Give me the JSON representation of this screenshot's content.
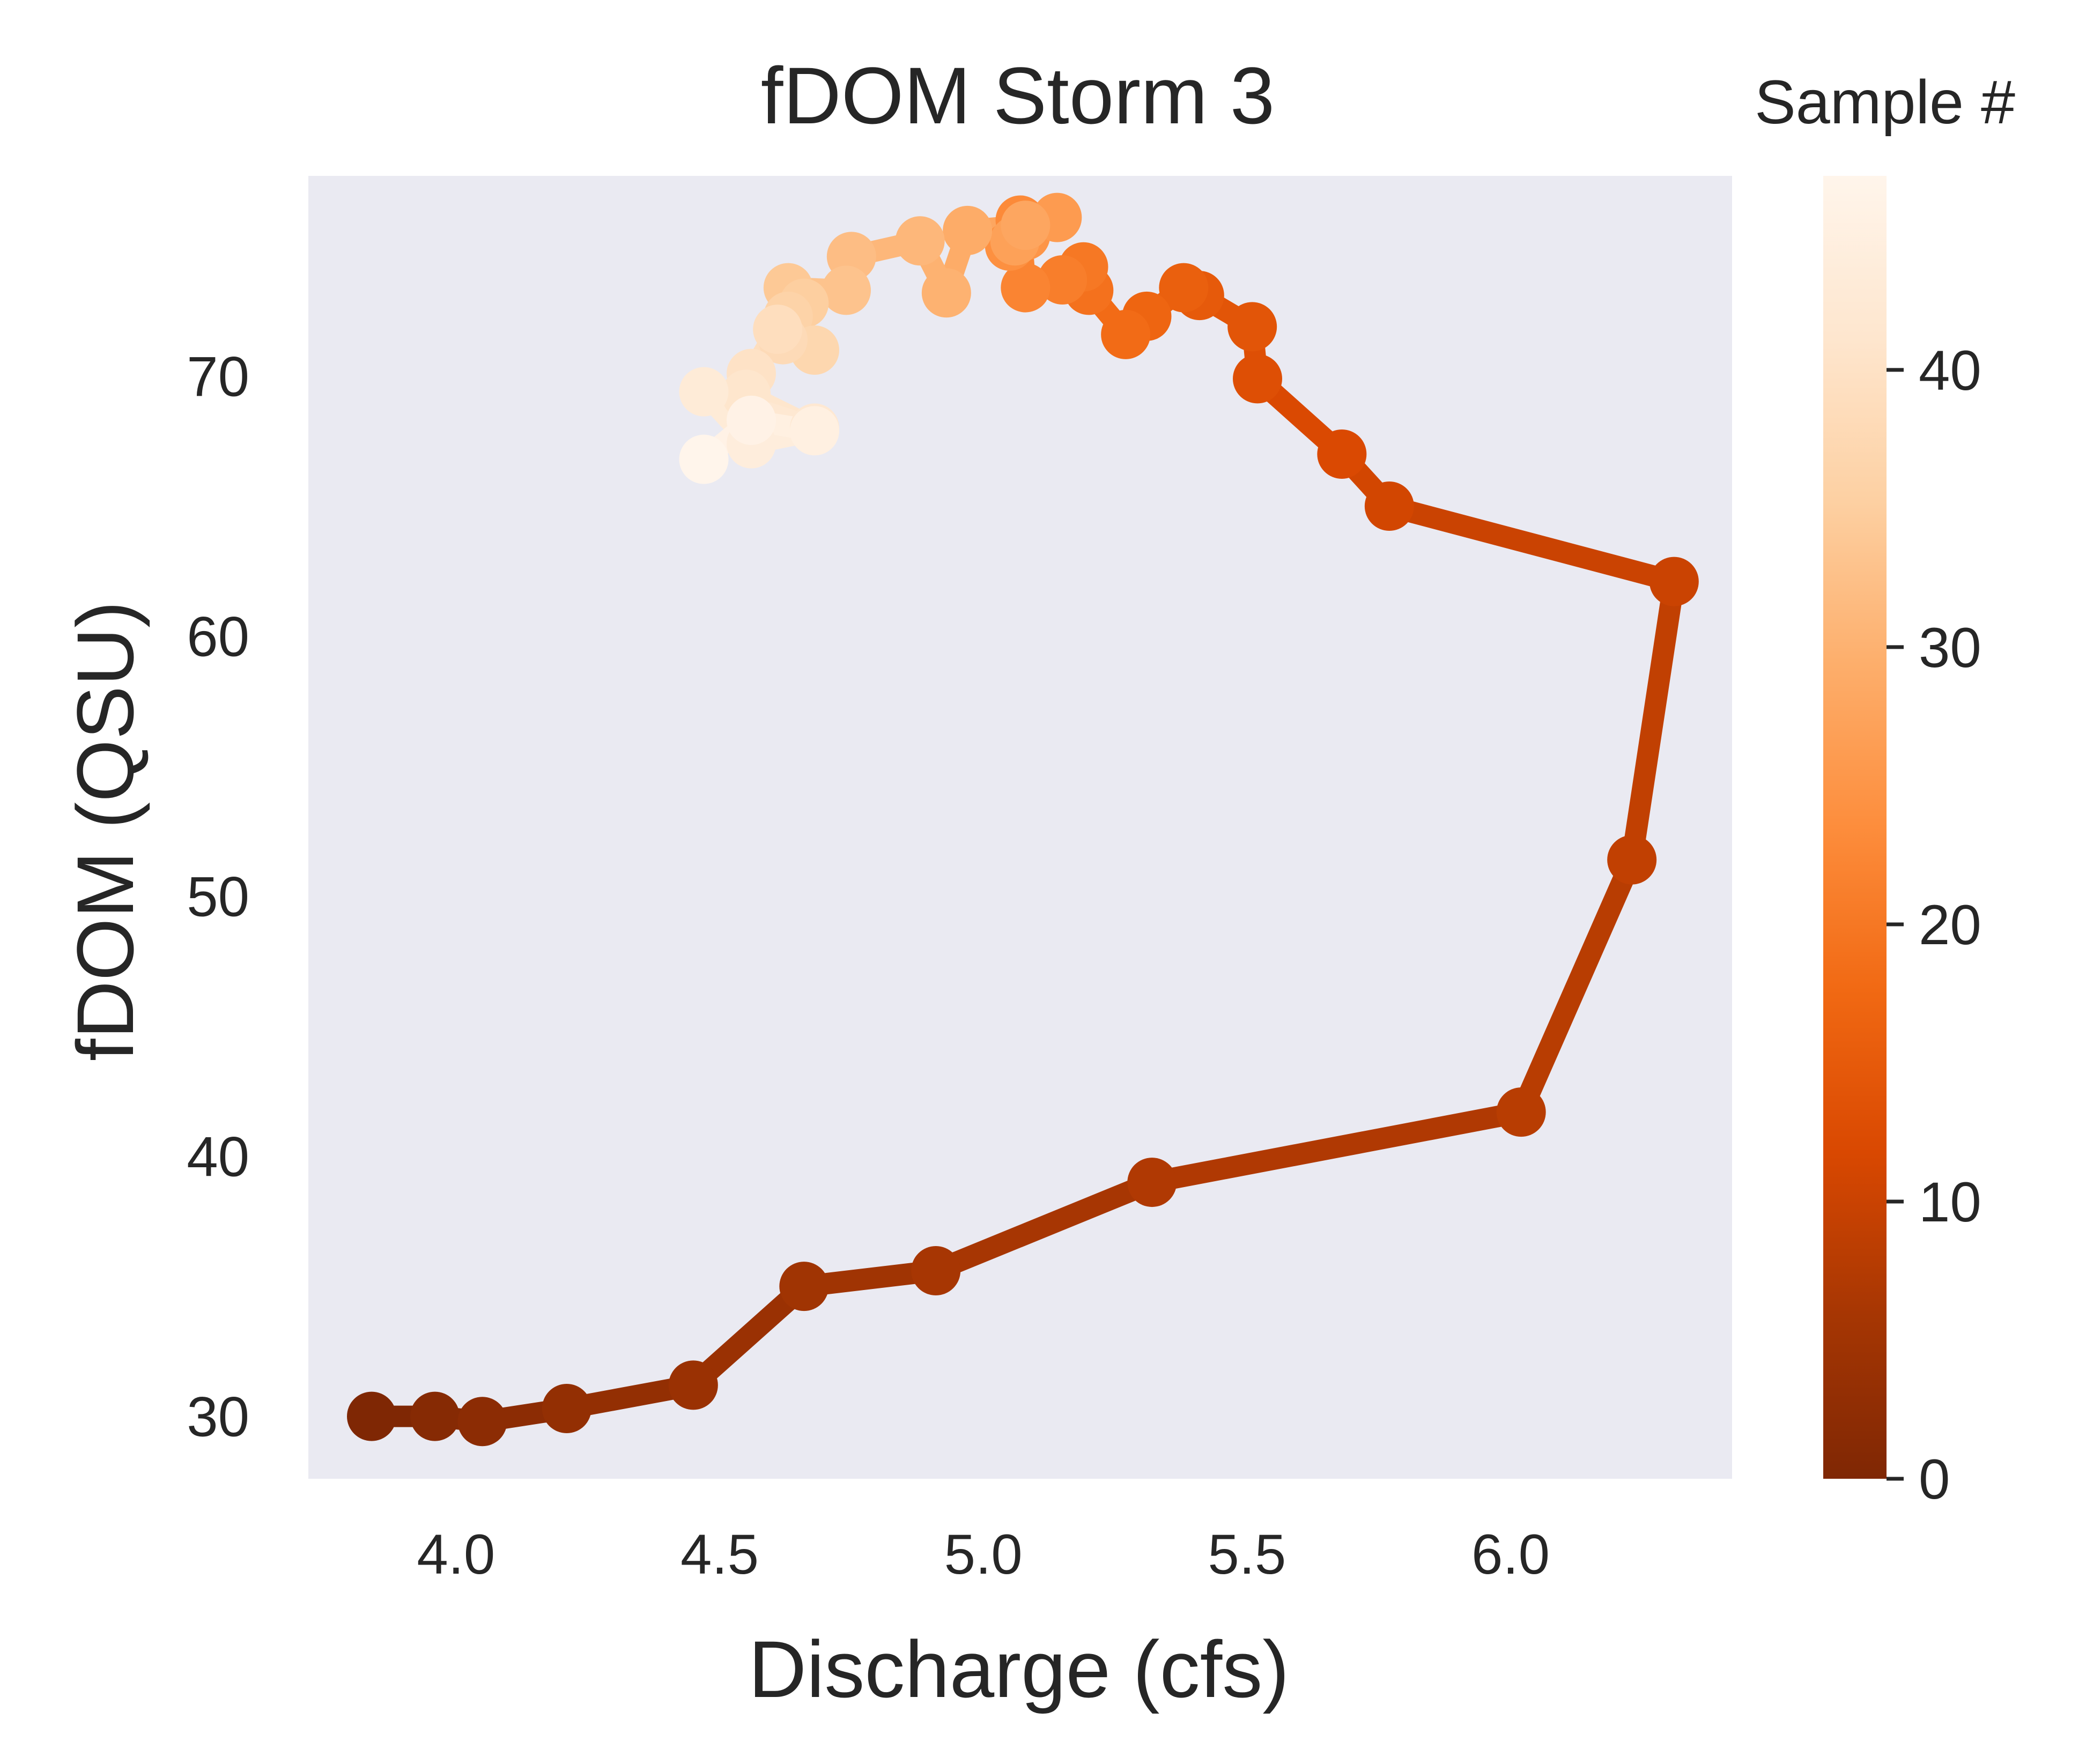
{
  "chart_data": {
    "type": "line",
    "title": "fDOM Storm 3",
    "xlabel": "Discharge (cfs)",
    "ylabel": "fDOM (QSU)",
    "xlim": [
      3.72,
      6.42
    ],
    "ylim": [
      27.6,
      77.7
    ],
    "xticks": [
      4.0,
      4.5,
      5.0,
      5.5,
      6.0
    ],
    "xtick_labels": [
      "4.0",
      "4.5",
      "5.0",
      "5.5",
      "6.0"
    ],
    "yticks": [
      30,
      40,
      50,
      60,
      70
    ],
    "ytick_labels": [
      "30",
      "40",
      "50",
      "60",
      "70"
    ],
    "grid": false,
    "plot_background": "#eaeaf2",
    "colormap": "Oranges_r",
    "colorbar": {
      "title": "Sample #",
      "min": 0,
      "max": 47,
      "ticks": [
        0,
        10,
        20,
        30,
        40
      ],
      "tick_labels": [
        "0",
        "10",
        "20",
        "30",
        "40"
      ],
      "stops": [
        "#7f2704",
        "#a63603",
        "#d94801",
        "#f16913",
        "#fd8d3c",
        "#fdae6b",
        "#fdd0a2",
        "#fee6ce",
        "#fff5eb"
      ]
    },
    "series": [
      {
        "x": [
          3.84,
          3.96,
          4.05,
          4.21,
          4.45,
          4.66,
          4.91,
          5.32,
          6.02,
          6.23,
          6.31,
          5.77,
          5.68,
          5.52,
          5.51,
          5.41,
          5.38,
          5.31,
          5.27,
          5.2,
          5.19,
          5.15,
          5.08,
          5.07,
          5.05,
          5.08,
          5.14,
          5.06,
          5.08,
          4.97,
          4.93,
          4.88,
          4.75,
          4.74,
          4.63,
          4.66,
          4.63,
          4.68,
          4.62,
          4.61,
          4.56,
          4.55,
          4.68,
          4.47,
          4.56,
          4.68,
          4.56,
          4.47
        ],
        "y": [
          30.0,
          30.0,
          29.8,
          30.3,
          31.2,
          35.0,
          35.6,
          39.0,
          41.7,
          51.4,
          62.1,
          65.0,
          67.0,
          69.9,
          71.9,
          73.1,
          73.4,
          72.3,
          71.6,
          73.3,
          74.2,
          73.7,
          73.4,
          76.0,
          75.0,
          75.4,
          76.1,
          75.2,
          75.8,
          75.6,
          73.2,
          75.2,
          74.6,
          73.3,
          73.4,
          72.8,
          72.3,
          71.0,
          71.4,
          71.8,
          70.1,
          69.3,
          68.0,
          69.4,
          67.4,
          67.9,
          68.3,
          66.8
        ]
      }
    ]
  }
}
